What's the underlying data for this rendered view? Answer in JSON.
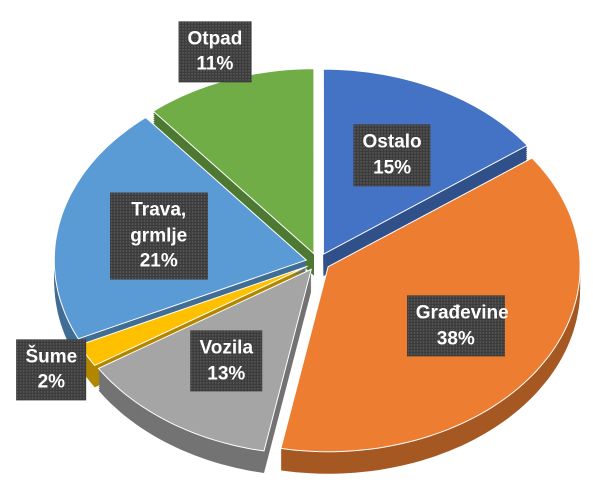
{
  "chart_data": {
    "type": "pie",
    "categories": [
      "Ostalo",
      "Građevine",
      "Vozila",
      "Šume",
      "Trava, grmlje",
      "Otpad"
    ],
    "values": [
      15,
      38,
      13,
      2,
      21,
      11
    ],
    "value_labels": [
      "15%",
      "38%",
      "13%",
      "2%",
      "21%",
      "11%"
    ],
    "colors": [
      "#4472c4",
      "#ed7d31",
      "#a5a5a5",
      "#ffc000",
      "#5b9bd5",
      "#70ad47"
    ]
  }
}
